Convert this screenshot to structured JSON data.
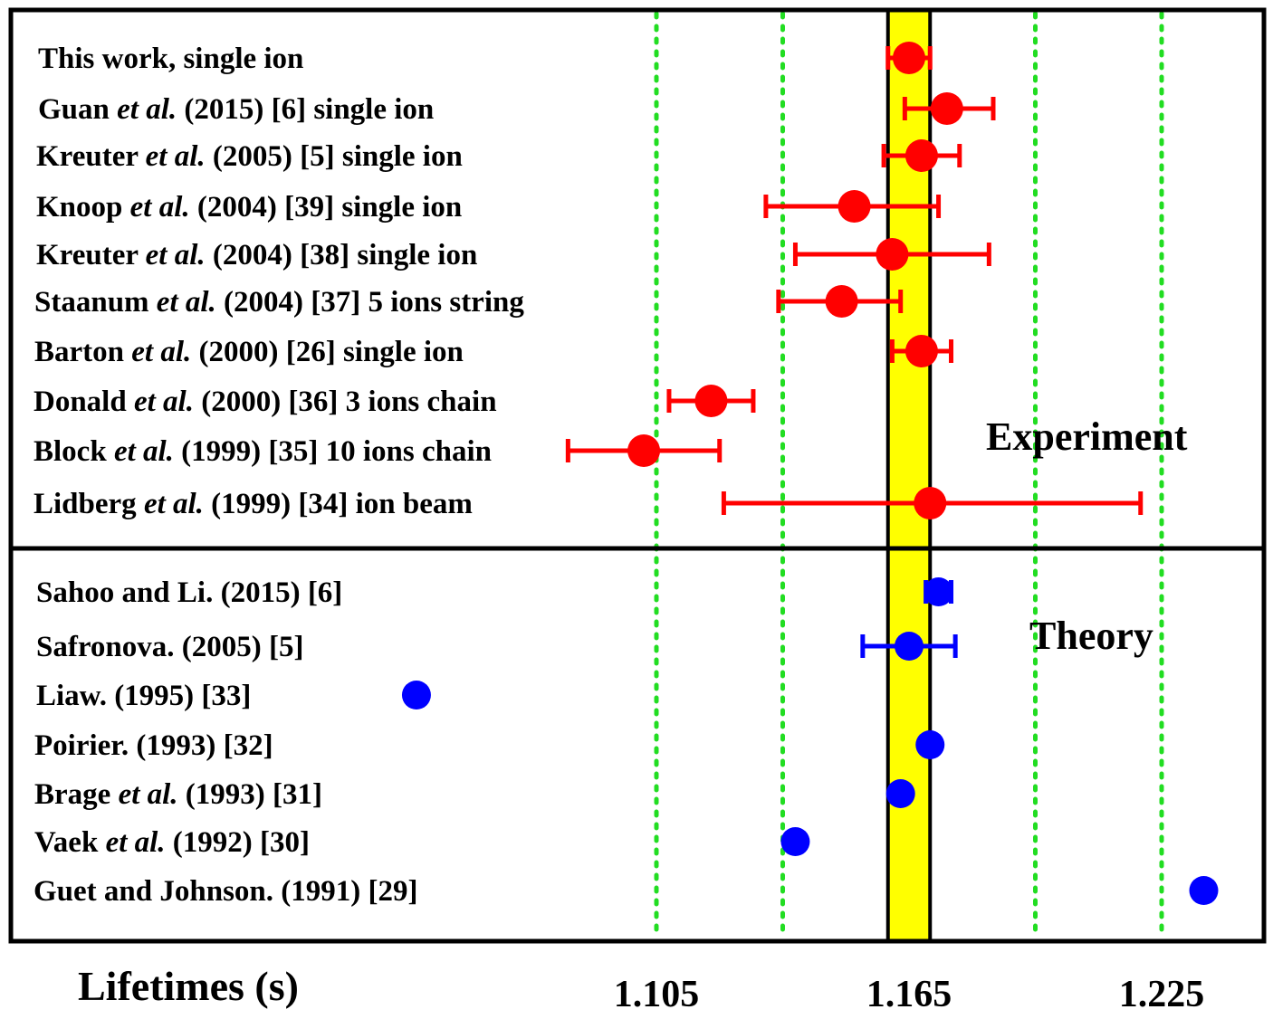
{
  "chart_data": {
    "type": "scatter",
    "xlabel": "Lifetimes (s)",
    "x_ticks": [
      "1.105",
      "1.165",
      "1.225"
    ],
    "tick_values": [
      1.105,
      1.165,
      1.225
    ],
    "gridlines_x": [
      1.105,
      1.135,
      1.195,
      1.225
    ],
    "reference_band": {
      "center": 1.165,
      "low": 1.16,
      "high": 1.17
    },
    "colors": {
      "experiment": "#ff0000",
      "theory": "#0000ff",
      "band": "#ffff00",
      "grid": "#22dd22",
      "frame": "#000000"
    },
    "sections": [
      {
        "name": "Experiment",
        "color": "#ff0000",
        "entries": [
          {
            "label": [
              {
                "t": "This work, single ion"
              }
            ],
            "value": 1.165,
            "err_low": 1.16,
            "err_high": 1.17
          },
          {
            "label": [
              {
                "t": "Guan "
              },
              {
                "t": "et al.",
                "i": true
              },
              {
                "t": " (2015) [6] single ion"
              }
            ],
            "value": 1.174,
            "err_low": 1.164,
            "err_high": 1.185
          },
          {
            "label": [
              {
                "t": "Kreuter "
              },
              {
                "t": "et al.",
                "i": true
              },
              {
                "t": " (2005) [5] single ion"
              }
            ],
            "value": 1.168,
            "err_low": 1.159,
            "err_high": 1.177
          },
          {
            "label": [
              {
                "t": "Knoop "
              },
              {
                "t": "et al.",
                "i": true
              },
              {
                "t": " (2004) [39] single ion"
              }
            ],
            "value": 1.152,
            "err_low": 1.131,
            "err_high": 1.172
          },
          {
            "label": [
              {
                "t": "Kreuter "
              },
              {
                "t": "et al.",
                "i": true
              },
              {
                "t": " (2004) [38] single ion"
              }
            ],
            "value": 1.161,
            "err_low": 1.138,
            "err_high": 1.184
          },
          {
            "label": [
              {
                "t": "Staanum "
              },
              {
                "t": "et al.",
                "i": true
              },
              {
                "t": " (2004) [37] 5 ions string"
              }
            ],
            "value": 1.149,
            "err_low": 1.134,
            "err_high": 1.163
          },
          {
            "label": [
              {
                "t": "Barton "
              },
              {
                "t": "et al.",
                "i": true
              },
              {
                "t": " (2000) [26] single ion"
              }
            ],
            "value": 1.168,
            "err_low": 1.161,
            "err_high": 1.175
          },
          {
            "label": [
              {
                "t": "Donald "
              },
              {
                "t": "et al.",
                "i": true
              },
              {
                "t": " (2000) [36] 3 ions chain"
              }
            ],
            "value": 1.118,
            "err_low": 1.108,
            "err_high": 1.128
          },
          {
            "label": [
              {
                "t": "Block "
              },
              {
                "t": "et al.",
                "i": true
              },
              {
                "t": " (1999) [35] 10 ions chain"
              }
            ],
            "value": 1.102,
            "err_low": 1.084,
            "err_high": 1.12
          },
          {
            "label": [
              {
                "t": "Lidberg "
              },
              {
                "t": "et al.",
                "i": true
              },
              {
                "t": " (1999) [34] ion beam"
              }
            ],
            "value": 1.17,
            "err_low": 1.121,
            "err_high": 1.22
          }
        ]
      },
      {
        "name": "Theory",
        "color": "#0000ff",
        "entries": [
          {
            "label": [
              {
                "t": "Sahoo and Li. (2015) [6]"
              }
            ],
            "value": 1.172,
            "err_low": 1.169,
            "err_high": 1.175
          },
          {
            "label": [
              {
                "t": "Safronova. (2005) [5]"
              }
            ],
            "value": 1.165,
            "err_low": 1.154,
            "err_high": 1.176
          },
          {
            "label": [
              {
                "t": "Liaw. (1995) [33]"
              }
            ],
            "value": 1.048
          },
          {
            "label": [
              {
                "t": "Poirier. (1993) [32]"
              }
            ],
            "value": 1.17
          },
          {
            "label": [
              {
                "t": "Brage "
              },
              {
                "t": "et al.",
                "i": true
              },
              {
                "t": " (1993) [31]"
              }
            ],
            "value": 1.163
          },
          {
            "label": [
              {
                "t": "Vaek "
              },
              {
                "t": "et al.",
                "i": true
              },
              {
                "t": " (1992) [30]"
              }
            ],
            "value": 1.138
          },
          {
            "label": [
              {
                "t": "Guet and Johnson. (1991) [29]"
              }
            ],
            "value": 1.235
          }
        ]
      }
    ]
  }
}
